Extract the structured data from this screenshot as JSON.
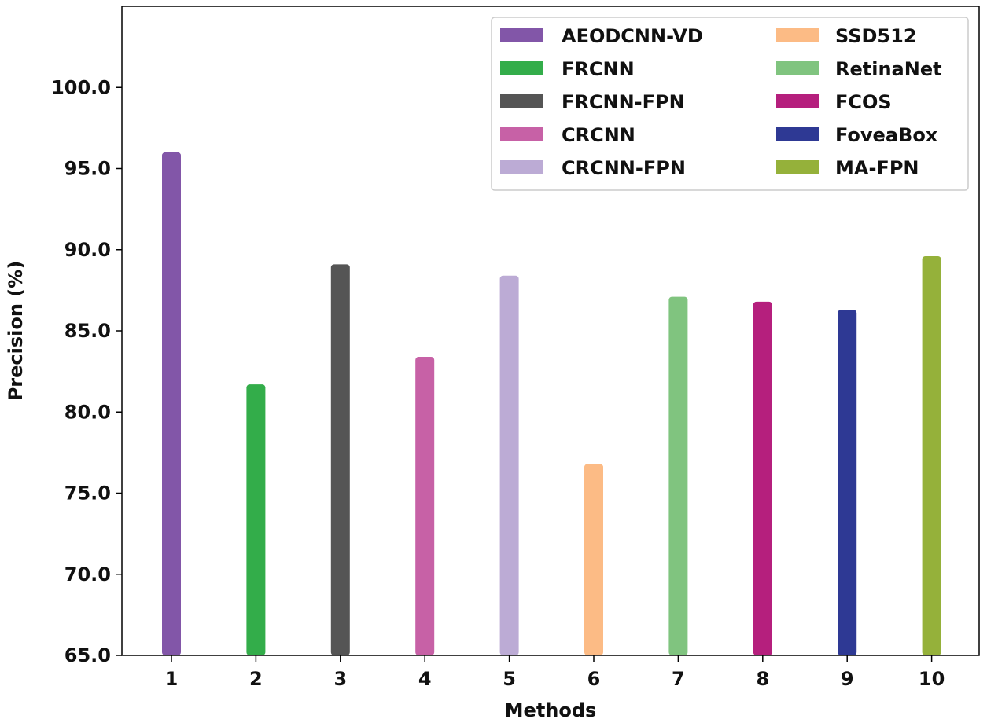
{
  "chart_data": {
    "type": "bar",
    "title": "",
    "xlabel": "Methods",
    "ylabel": "Precision (%)",
    "ylim": [
      65.0,
      105.0
    ],
    "yticks": [
      "65.0",
      "70.0",
      "75.0",
      "80.0",
      "85.0",
      "90.0",
      "95.0",
      "100.0"
    ],
    "grid": false,
    "legend_position": "top-right",
    "categories": [
      "1",
      "2",
      "3",
      "4",
      "5",
      "6",
      "7",
      "8",
      "9",
      "10"
    ],
    "series": [
      {
        "name": "AEODCNN-VD",
        "value": 96.0,
        "color": "#8256a8"
      },
      {
        "name": "FRCNN",
        "value": 81.7,
        "color": "#33ad4a"
      },
      {
        "name": "FRCNN-FPN",
        "value": 89.1,
        "color": "#555555"
      },
      {
        "name": "CRCNN",
        "value": 83.4,
        "color": "#c761a6"
      },
      {
        "name": "CRCNN-FPN",
        "value": 88.4,
        "color": "#bcabd5"
      },
      {
        "name": "SSD512",
        "value": 76.8,
        "color": "#fcbb85"
      },
      {
        "name": "RetinaNet",
        "value": 87.1,
        "color": "#80c47f"
      },
      {
        "name": "FCOS",
        "value": 86.8,
        "color": "#b51f7d"
      },
      {
        "name": "FoveaBox",
        "value": 86.3,
        "color": "#2e3994"
      },
      {
        "name": "MA-FPN",
        "value": 89.6,
        "color": "#95b13a"
      }
    ]
  }
}
